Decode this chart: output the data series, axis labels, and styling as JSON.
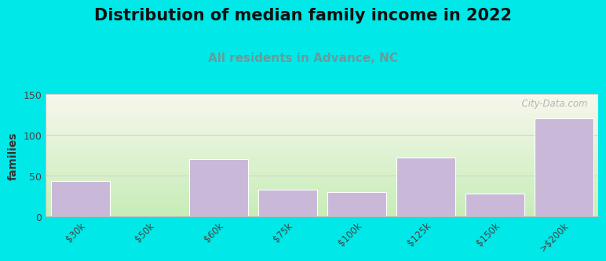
{
  "title": "Distribution of median family income in 2022",
  "subtitle": "All residents in Advance, NC",
  "categories": [
    "$30k",
    "$50k",
    "$60k",
    "$75k",
    "$100k",
    "$125k",
    "$150k",
    ">$200k"
  ],
  "values": [
    43,
    0,
    70,
    33,
    30,
    72,
    28,
    120
  ],
  "bar_color": "#c9b8d8",
  "bar_edge_color": "#c9b8d8",
  "ylim": [
    0,
    150
  ],
  "yticks": [
    0,
    50,
    100,
    150
  ],
  "ylabel": "families",
  "title_fontsize": 15,
  "subtitle_fontsize": 11,
  "subtitle_color": "#6a9a9a",
  "background_outer": "#00e8e8",
  "watermark": "  City-Data.com",
  "grad_bottom_left": "#c8e8b8",
  "grad_top_right": "#f8f8ee"
}
